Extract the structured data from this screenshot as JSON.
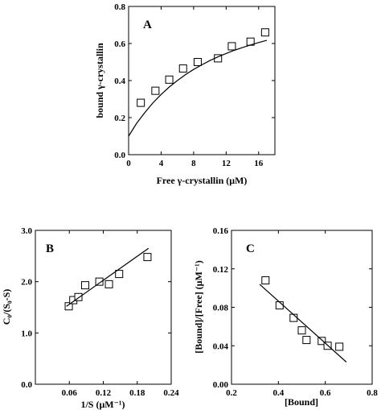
{
  "chart_data": [
    {
      "type": "scatter",
      "panel": "A",
      "xlabel": "Free γ-crystallin (μM)",
      "ylabel": "bound γ-crystallin",
      "xlim": [
        0,
        18
      ],
      "ylim": [
        0,
        0.8
      ],
      "xticks": [
        0,
        4,
        8,
        12,
        16
      ],
      "yticks": [
        0.0,
        0.2,
        0.4,
        0.6,
        0.8
      ],
      "xtick_labels": [
        "0",
        "4",
        "8",
        "12",
        "16"
      ],
      "ytick_labels": [
        "0.0",
        "0.2",
        "0.4",
        "0.6",
        "0.8"
      ],
      "grid": false,
      "legend": "none",
      "series": [
        {
          "kind": "markers",
          "marker": "open-square",
          "x": [
            1.5,
            3.3,
            5.0,
            6.7,
            8.5,
            11.0,
            12.7,
            15.0,
            16.8
          ],
          "y": [
            0.28,
            0.345,
            0.405,
            0.465,
            0.5,
            0.52,
            0.585,
            0.61,
            0.66
          ]
        },
        {
          "kind": "fit-curve",
          "x": [
            0,
            1,
            2,
            3,
            4,
            5,
            6,
            7,
            8,
            9,
            10,
            11,
            12,
            13,
            14,
            15,
            16,
            17
          ],
          "y": [
            0.1,
            0.17,
            0.227,
            0.28,
            0.325,
            0.365,
            0.4,
            0.432,
            0.46,
            0.485,
            0.508,
            0.528,
            0.546,
            0.563,
            0.578,
            0.592,
            0.605,
            0.617
          ]
        }
      ]
    },
    {
      "type": "scatter",
      "panel": "B",
      "xlabel": "1/S (μM⁻¹)",
      "ylabel": "C₀/(S₀-S)",
      "xlim": [
        0.0,
        0.24
      ],
      "ylim": [
        0.0,
        3.0
      ],
      "xticks": [
        0.06,
        0.12,
        0.18,
        0.24
      ],
      "yticks": [
        0.0,
        1.0,
        2.0,
        3.0
      ],
      "xtick_labels": [
        "0.06",
        "0.12",
        "0.18",
        "0.24"
      ],
      "ytick_labels": [
        "0.0",
        "1.0",
        "2.0",
        "3.0"
      ],
      "grid": false,
      "legend": "none",
      "series": [
        {
          "kind": "markers",
          "marker": "open-square",
          "x": [
            0.059,
            0.067,
            0.076,
            0.088,
            0.113,
            0.13,
            0.148,
            0.198
          ],
          "y": [
            1.52,
            1.64,
            1.7,
            1.93,
            2.0,
            1.95,
            2.15,
            2.48
          ]
        },
        {
          "kind": "fit-line",
          "x": [
            0.055,
            0.2
          ],
          "y": [
            1.52,
            2.65
          ]
        }
      ]
    },
    {
      "type": "scatter",
      "panel": "C",
      "xlabel": "[Bound]",
      "ylabel": "[Bound]/[Free] (μM⁻¹)",
      "xlim": [
        0.2,
        0.8
      ],
      "ylim": [
        0.0,
        0.16
      ],
      "xticks": [
        0.2,
        0.4,
        0.6,
        0.8
      ],
      "yticks": [
        0.0,
        0.04,
        0.08,
        0.12,
        0.16
      ],
      "xtick_labels": [
        "0.2",
        "0.4",
        "0.6",
        "0.8"
      ],
      "ytick_labels": [
        "0.00",
        "0.04",
        "0.08",
        "0.12",
        "0.16"
      ],
      "grid": false,
      "legend": "none",
      "series": [
        {
          "kind": "markers",
          "marker": "open-square",
          "x": [
            0.345,
            0.405,
            0.465,
            0.5,
            0.52,
            0.585,
            0.61,
            0.66
          ],
          "y": [
            0.108,
            0.082,
            0.069,
            0.056,
            0.046,
            0.045,
            0.04,
            0.039
          ]
        },
        {
          "kind": "fit-line",
          "x": [
            0.32,
            0.69
          ],
          "y": [
            0.104,
            0.023
          ]
        }
      ]
    }
  ]
}
